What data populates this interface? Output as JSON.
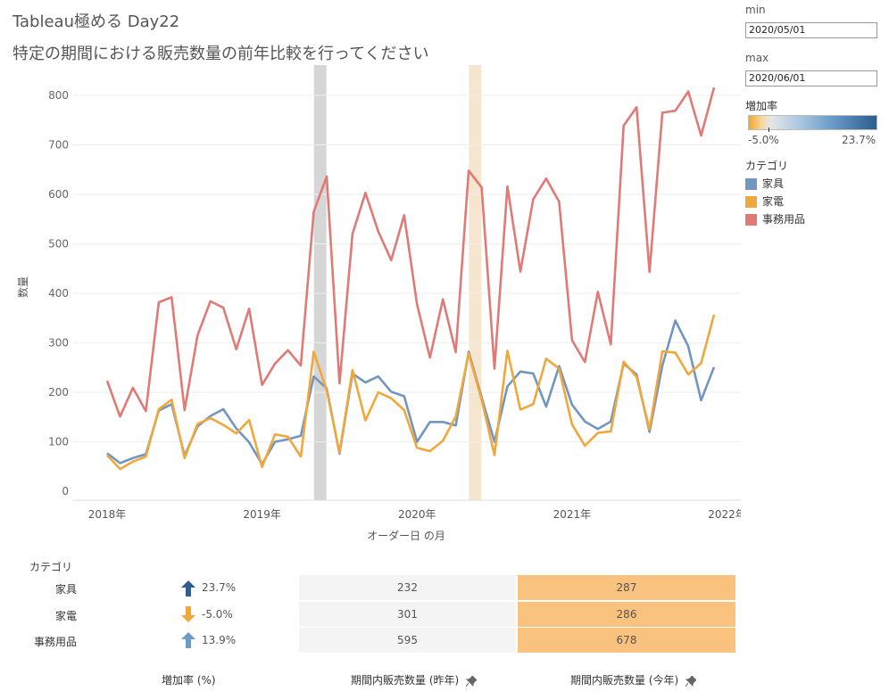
{
  "header": {
    "title": "Tableau極める Day22",
    "subtitle": "特定の期間における販売数量の前年比較を行ってください"
  },
  "params": {
    "min_label": "min",
    "min_value": "2020/05/01",
    "max_label": "max",
    "max_value": "2020/06/01"
  },
  "color_legend": {
    "title": "増加率",
    "low": "-5.0%",
    "high": "23.7%"
  },
  "category_legend": {
    "title": "カテゴリ",
    "items": [
      {
        "label": "家具",
        "color": "#7296bf"
      },
      {
        "label": "家電",
        "color": "#f0a73c"
      },
      {
        "label": "事務用品",
        "color": "#e07a76"
      }
    ]
  },
  "chart_data": {
    "type": "line",
    "xlabel": "オーダー日 の月",
    "ylabel": "数量",
    "ylim": [
      0,
      850
    ],
    "yticks": [
      0,
      100,
      200,
      300,
      400,
      500,
      600,
      700,
      800
    ],
    "xticks": [
      "2018年",
      "2019年",
      "2020年",
      "2021年",
      "2022年"
    ],
    "x_start": "2018/01",
    "x_end": "2021/12",
    "grid": true,
    "highlight_bands": [
      {
        "month": "2019/05",
        "color": "#d6d6d6"
      },
      {
        "month": "2020/05",
        "color": "#f6e6cf"
      }
    ],
    "series": [
      {
        "name": "事務用品",
        "color": "#e07a76",
        "values": [
          223,
          151,
          209,
          162,
          382,
          392,
          164,
          315,
          384,
          371,
          287,
          369,
          215,
          258,
          285,
          254,
          565,
          636,
          218,
          520,
          603,
          525,
          467,
          558,
          378,
          270,
          388,
          281,
          648,
          614,
          248,
          616,
          444,
          590,
          632,
          585,
          305,
          261,
          403,
          297,
          739,
          776,
          443,
          765,
          769,
          808,
          719,
          816
        ]
      },
      {
        "name": "家具",
        "color": "#7296bf",
        "values": [
          77,
          57,
          67,
          75,
          163,
          176,
          72,
          131,
          152,
          166,
          127,
          99,
          55,
          100,
          105,
          112,
          232,
          208,
          76,
          238,
          220,
          232,
          201,
          192,
          100,
          140,
          140,
          133,
          282,
          190,
          100,
          212,
          242,
          238,
          171,
          253,
          175,
          141,
          126,
          141,
          258,
          236,
          120,
          254,
          345,
          293,
          184,
          251
        ]
      },
      {
        "name": "家電",
        "color": "#f0a73c",
        "values": [
          73,
          45,
          60,
          70,
          166,
          185,
          67,
          136,
          148,
          134,
          117,
          144,
          49,
          115,
          110,
          70,
          282,
          204,
          78,
          245,
          143,
          200,
          188,
          164,
          88,
          81,
          102,
          151,
          279,
          185,
          73,
          284,
          165,
          176,
          268,
          248,
          135,
          92,
          118,
          121,
          262,
          231,
          125,
          283,
          280,
          236,
          259,
          357
        ]
      }
    ]
  },
  "table": {
    "category_header": "カテゴリ",
    "rows": [
      {
        "category": "家具",
        "rate": "23.7%",
        "last_year": "232",
        "this_year": "287",
        "arrow_color": "#2e5f93",
        "direction": "up"
      },
      {
        "category": "家電",
        "rate": "-5.0%",
        "last_year": "301",
        "this_year": "286",
        "arrow_color": "#f0a73c",
        "direction": "down"
      },
      {
        "category": "事務用品",
        "rate": "13.9%",
        "last_year": "595",
        "this_year": "678",
        "arrow_color": "#6b9bc9",
        "direction": "up"
      }
    ],
    "footer": {
      "rate": "増加率 (%)",
      "last_year": "期間内販売数量 (昨年)",
      "this_year": "期間内販売数量 (今年)"
    },
    "last_year_bg": "#f4f4f4",
    "this_year_bg": "#f9c27e"
  }
}
